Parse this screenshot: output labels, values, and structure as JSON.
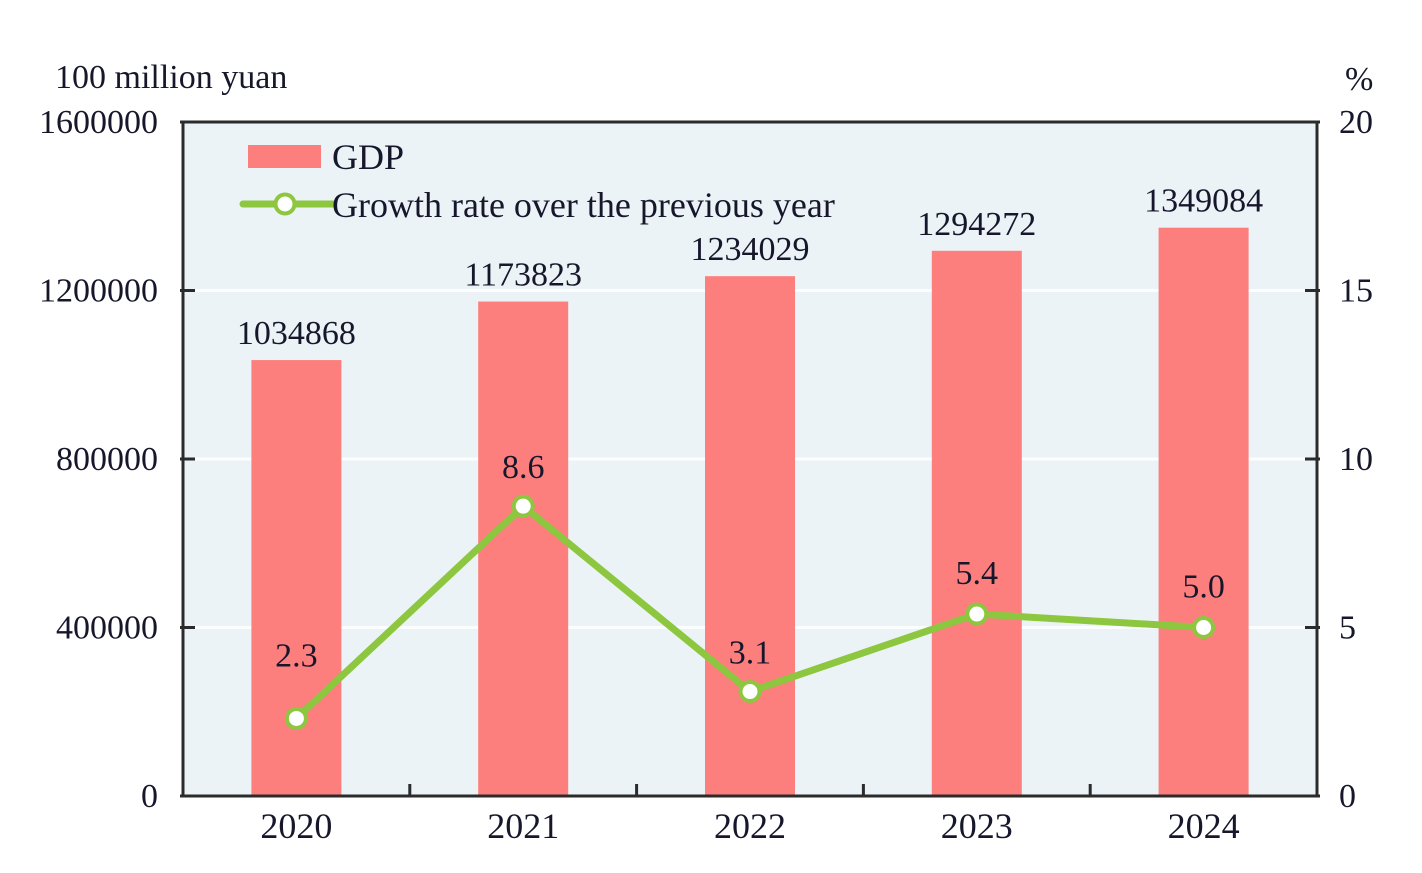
{
  "chart_data": {
    "type": "bar",
    "title": "",
    "categories": [
      "2020",
      "2021",
      "2022",
      "2023",
      "2024"
    ],
    "series": [
      {
        "name": "GDP",
        "type": "bar",
        "axis": "left",
        "color": "#fc7f7e",
        "values": [
          1034868,
          1173823,
          1234029,
          1294272,
          1349084
        ]
      },
      {
        "name": "Growth rate over the previous year",
        "type": "line",
        "axis": "right",
        "color": "#8dc63f",
        "marker": "circle-white-fill-green-ring",
        "decimals": 1,
        "values": [
          2.3,
          8.6,
          3.1,
          5.4,
          5.0
        ],
        "label_offsets": [
          -52,
          -28,
          -28,
          -30,
          -30
        ]
      }
    ],
    "left_axis": {
      "label": "100 million yuan",
      "min": 0,
      "max": 1600000,
      "ticks": [
        0,
        400000,
        800000,
        1200000,
        1600000
      ]
    },
    "right_axis": {
      "label": "%",
      "min": 0,
      "max": 20,
      "ticks": [
        0,
        5,
        10,
        15,
        20
      ]
    },
    "grid": true,
    "legend_position": "top-left-inside",
    "plot_background": "#ecf3f6",
    "grid_color": "#fbfdfe",
    "border_color": "#2b2b2b",
    "text_color": "#17172c"
  }
}
